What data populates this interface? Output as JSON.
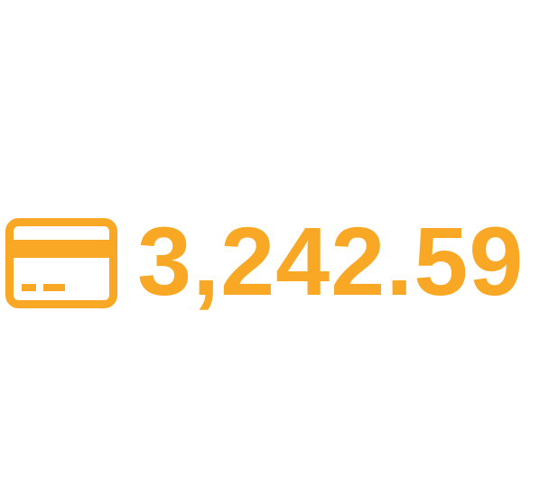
{
  "metric": {
    "icon": "credit-card-icon",
    "value": "3,242.59",
    "color": "#F9A825"
  }
}
